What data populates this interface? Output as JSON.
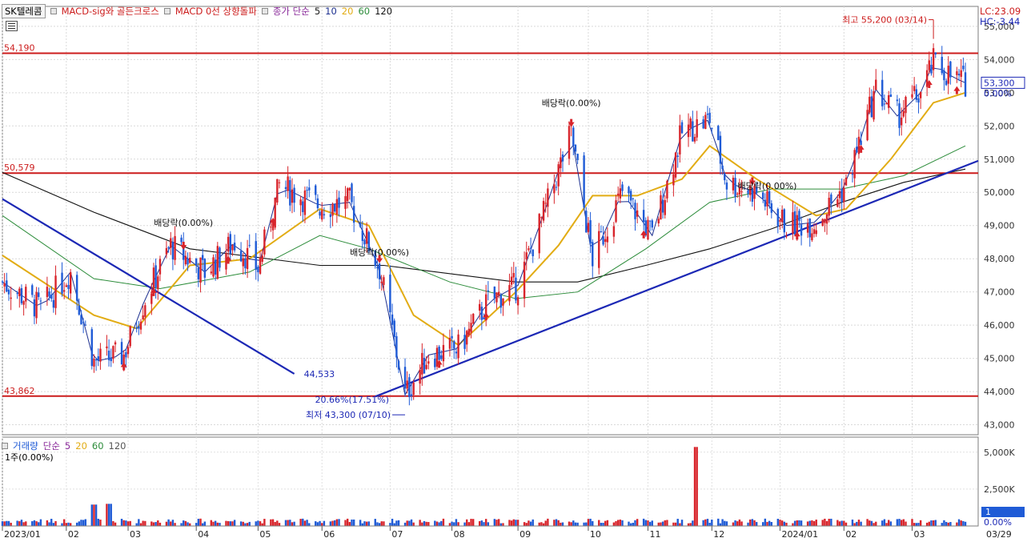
{
  "chart_title": {
    "stock": "SK텔레콤",
    "indicator_1": "MACD-sig와 골든크로스",
    "indicator_2": "MACD 0선 상향돌파",
    "ma_label": "종가 단순",
    "ma_periods": [
      "5",
      "10",
      "20",
      "60",
      "120"
    ]
  },
  "colors": {
    "up": "#d8242b",
    "down": "#1f5bd6",
    "ma5": "#1a1a1a",
    "ma10": "#1c2f8f",
    "ma20": "#e2ac14",
    "ma60": "#2c8c3a",
    "ma120": "#111111",
    "ma_label": "#8a2a9a",
    "level_line": "#cc1c1c",
    "trend_line": "#1c28b5"
  },
  "right_info": {
    "lc": "LC:23.09",
    "hc": "HC:-3.44",
    "price_tag": "53,300",
    "pct_tag": "0.00%"
  },
  "volume_panel": {
    "label": "거래량",
    "ma_label": "단순",
    "ma_periods": [
      "5",
      "20",
      "60",
      "120"
    ],
    "sub": "1주(0.00%)",
    "y_ticks": [
      "5,000K",
      "2,500K",
      "1",
      "0.00%"
    ]
  },
  "icons": {
    "menu": "hamburger-menu-icon",
    "buy_signal": "up-arrow-icon",
    "sell_signal": "down-arrow-icon"
  },
  "chart_data": {
    "type": "candlestick",
    "x_labels": [
      "2023/01",
      "02",
      "03",
      "04",
      "05",
      "06",
      "07",
      "08",
      "09",
      "10",
      "11",
      "12",
      "2024/01",
      "02",
      "03",
      "03/29"
    ],
    "y_ticks": [
      "55,000",
      "54,000",
      "53,000",
      "52,000",
      "51,000",
      "50,000",
      "49,000",
      "48,000",
      "47,000",
      "46,000",
      "45,000",
      "44,000",
      "43,000"
    ],
    "ylim": [
      42700,
      55600
    ],
    "levels": [
      {
        "label": "54,190",
        "value": 54190
      },
      {
        "label": "50,579",
        "value": 50579
      },
      {
        "label": "43,862",
        "value": 43862
      }
    ],
    "annotations": [
      {
        "text": "최고 55,200 (03/14)",
        "date": "2024-03-14",
        "price": 55200
      },
      {
        "text": "최저 43,300 (07/10)",
        "date": "2023-07-10",
        "price": 43300
      },
      {
        "text": "20.66%(17.51%)",
        "date": "2023-07-10",
        "price": 43900
      },
      {
        "text": "배당락(0.00%)",
        "date": "2023-03-28",
        "price": 48900
      },
      {
        "text": "배당락(0.00%)",
        "date": "2023-06-28",
        "price": 48000
      },
      {
        "text": "배당락(0.00%)",
        "date": "2023-09-26",
        "price": 52500
      },
      {
        "text": "배당락(0.00%)",
        "date": "2023-12-27",
        "price": 50000
      },
      {
        "text": "44,533",
        "date": "2023-05-22",
        "price": 44533
      }
    ],
    "trendlines": [
      {
        "name": "downtrend",
        "from": [
          "2023-01-02",
          49800
        ],
        "to": [
          "2023-05-19",
          44533
        ]
      },
      {
        "name": "uptrend",
        "from": [
          "2023-06-26",
          43850
        ],
        "to": [
          "2024-04-04",
          50950
        ]
      }
    ],
    "price_path": [
      [
        "2023-01-02",
        47300
      ],
      [
        "2023-01-20",
        46500
      ],
      [
        "2023-02-03",
        47600
      ],
      [
        "2023-02-14",
        44900
      ],
      [
        "2023-02-28",
        45100
      ],
      [
        "2023-03-10",
        46800
      ],
      [
        "2023-03-22",
        48400
      ],
      [
        "2023-04-07",
        47600
      ],
      [
        "2023-04-21",
        48500
      ],
      [
        "2023-05-02",
        47700
      ],
      [
        "2023-05-12",
        50200
      ],
      [
        "2023-05-31",
        49600
      ],
      [
        "2023-06-14",
        49700
      ],
      [
        "2023-06-28",
        47700
      ],
      [
        "2023-07-10",
        43900
      ],
      [
        "2023-07-21",
        45100
      ],
      [
        "2023-08-04",
        45300
      ],
      [
        "2023-08-18",
        46700
      ],
      [
        "2023-09-01",
        47200
      ],
      [
        "2023-09-15",
        49700
      ],
      [
        "2023-09-26",
        51800
      ],
      [
        "2023-10-06",
        48000
      ],
      [
        "2023-10-20",
        50000
      ],
      [
        "2023-11-03",
        48700
      ],
      [
        "2023-11-17",
        51800
      ],
      [
        "2023-11-30",
        52200
      ],
      [
        "2023-12-08",
        50300
      ],
      [
        "2023-12-22",
        50000
      ],
      [
        "2024-01-05",
        49000
      ],
      [
        "2024-01-19",
        49100
      ],
      [
        "2024-02-02",
        50200
      ],
      [
        "2024-02-16",
        53100
      ],
      [
        "2024-02-26",
        52300
      ],
      [
        "2024-03-08",
        53000
      ],
      [
        "2024-03-14",
        53900
      ],
      [
        "2024-03-22",
        53500
      ],
      [
        "2024-03-29",
        53300
      ]
    ],
    "moving_averages": {
      "ma20": [
        [
          "2023-01-02",
          48100
        ],
        [
          "2023-02-14",
          46300
        ],
        [
          "2023-03-06",
          45900
        ],
        [
          "2023-03-31",
          47800
        ],
        [
          "2023-04-28",
          48000
        ],
        [
          "2023-05-31",
          49500
        ],
        [
          "2023-06-23",
          49000
        ],
        [
          "2023-07-14",
          46300
        ],
        [
          "2023-08-04",
          45400
        ],
        [
          "2023-08-31",
          47000
        ],
        [
          "2023-09-20",
          48400
        ],
        [
          "2023-10-06",
          49900
        ],
        [
          "2023-10-27",
          49900
        ],
        [
          "2023-11-17",
          50400
        ],
        [
          "2023-11-30",
          51400
        ],
        [
          "2023-12-22",
          50400
        ],
        [
          "2024-01-19",
          49300
        ],
        [
          "2024-02-02",
          49500
        ],
        [
          "2024-02-23",
          51000
        ],
        [
          "2024-03-14",
          52700
        ],
        [
          "2024-03-29",
          53000
        ]
      ],
      "ma60": [
        [
          "2023-01-02",
          49300
        ],
        [
          "2023-02-14",
          47400
        ],
        [
          "2023-03-17",
          47100
        ],
        [
          "2023-04-28",
          47600
        ],
        [
          "2023-05-31",
          48700
        ],
        [
          "2023-06-23",
          48300
        ],
        [
          "2023-07-31",
          47300
        ],
        [
          "2023-08-31",
          46800
        ],
        [
          "2023-09-29",
          47000
        ],
        [
          "2023-10-31",
          48300
        ],
        [
          "2023-11-30",
          49700
        ],
        [
          "2023-12-29",
          50100
        ],
        [
          "2024-01-31",
          50100
        ],
        [
          "2024-02-29",
          50500
        ],
        [
          "2024-03-29",
          51400
        ]
      ],
      "ma120": [
        [
          "2023-01-02",
          50600
        ],
        [
          "2023-02-14",
          49400
        ],
        [
          "2023-03-31",
          48300
        ],
        [
          "2023-05-31",
          47800
        ],
        [
          "2023-06-30",
          47800
        ],
        [
          "2023-08-31",
          47300
        ],
        [
          "2023-09-29",
          47300
        ],
        [
          "2023-10-31",
          47800
        ],
        [
          "2023-11-30",
          48300
        ],
        [
          "2023-12-29",
          48900
        ],
        [
          "2024-01-31",
          49700
        ],
        [
          "2024-02-29",
          50300
        ],
        [
          "2024-03-29",
          50700
        ]
      ]
    },
    "volume_spikes": [
      {
        "date": "2023-02-14",
        "value": 1450000
      },
      {
        "date": "2023-02-21",
        "value": 1500000
      },
      {
        "date": "2023-11-24",
        "value": 5350000
      }
    ]
  }
}
